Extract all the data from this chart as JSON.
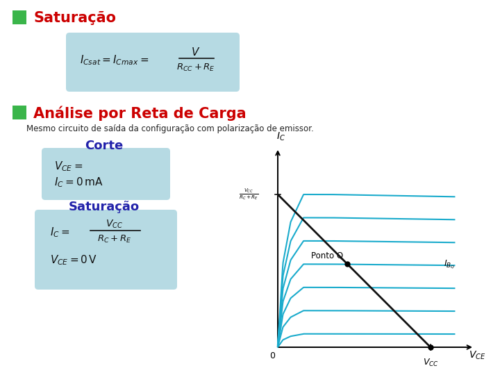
{
  "bg_color": "#ffffff",
  "green_color": "#3ab54a",
  "title1_color": "#cc0000",
  "title2_color": "#cc0000",
  "subtitle_color": "#222222",
  "box_color": "#aed6e0",
  "corte_color": "#2222aa",
  "saturacao_color": "#2222aa",
  "curve_color": "#1aabcc",
  "load_line_color": "#111111",
  "title1": "Saturação",
  "title2": "Análise por Reta de Carga",
  "subtitle": "Mesmo circuito de saída da configuração com polarização de emissor.",
  "corte": "Corte",
  "saturacao": "Saturação",
  "num_curves": 7,
  "ibq_curve_idx": 3
}
